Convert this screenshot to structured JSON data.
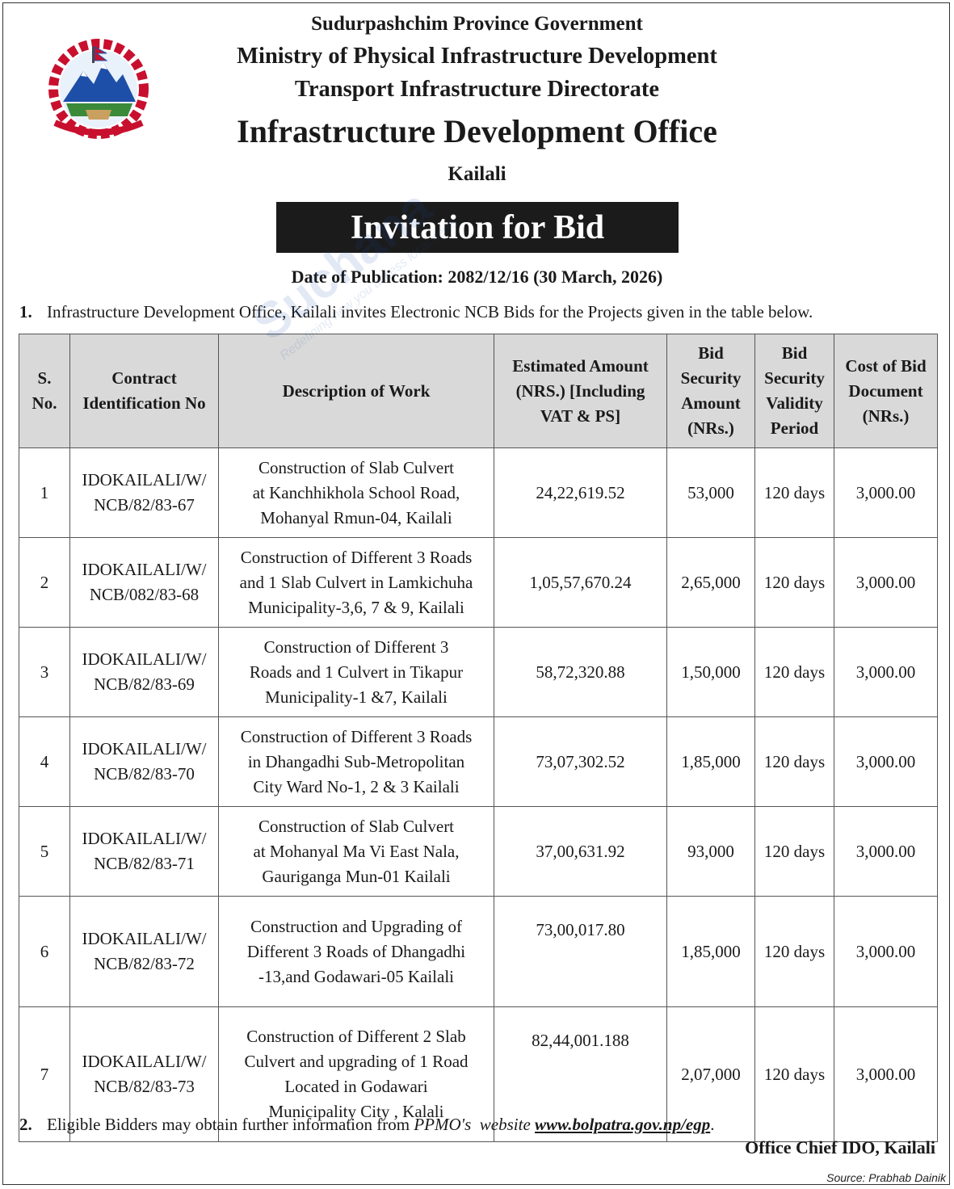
{
  "header": {
    "province": "Sudurpashchim Province Government",
    "ministry": "Ministry of Physical Infrastructure Development",
    "directorate": "Transport Infrastructure Directorate",
    "office": "Infrastructure Development Office",
    "district": "Kailali"
  },
  "title": "Invitation for Bid",
  "publication_date": "Date of Publication: 2082/12/16 (30 March, 2026)",
  "para1": {
    "num": "1.",
    "text": "Infrastructure Development Office, Kailali invites Electronic NCB Bids for the Projects given in the table below."
  },
  "table": {
    "headers": [
      [
        "S.",
        "No."
      ],
      [
        "Contract",
        "Identification No"
      ],
      [
        "Description of Work"
      ],
      [
        "Estimated Amount",
        "(NRS.) [Including",
        "VAT & PS]"
      ],
      [
        "Bid",
        "Security",
        "Amount",
        "(NRs.)"
      ],
      [
        "Bid",
        "Security",
        "Validity",
        "Period"
      ],
      [
        "Cost of Bid",
        "Document",
        "(NRs.)"
      ]
    ],
    "rows": [
      {
        "sn": "1",
        "id": [
          "IDOKAILALI/W/",
          "NCB/82/83-67"
        ],
        "desc": [
          "Construction of Slab Culvert",
          "at Kanchhikhola School Road,",
          "Mohanyal Rmun-04, Kailali"
        ],
        "amount": "24,22,619.52",
        "security": "53,000",
        "validity": "120 days",
        "cost": "3,000.00"
      },
      {
        "sn": "2",
        "id": [
          "IDOKAILALI/W/",
          "NCB/082/83-68"
        ],
        "desc": [
          "Construction of Different 3 Roads",
          "and 1 Slab Culvert in Lamkichuha",
          "Municipality-3,6, 7 & 9, Kailali"
        ],
        "amount": "1,05,57,670.24",
        "security": "2,65,000",
        "validity": "120 days",
        "cost": "3,000.00"
      },
      {
        "sn": "3",
        "id": [
          "IDOKAILALI/W/",
          "NCB/82/83-69"
        ],
        "desc": [
          "Construction of Different 3",
          "Roads and 1 Culvert in Tikapur",
          "Municipality-1 &7, Kailali"
        ],
        "amount": "58,72,320.88",
        "security": "1,50,000",
        "validity": "120 days",
        "cost": "3,000.00"
      },
      {
        "sn": "4",
        "id": [
          "IDOKAILALI/W/",
          "NCB/82/83-70"
        ],
        "desc": [
          "Construction of Different 3 Roads",
          "in Dhangadhi Sub-Metropolitan",
          "City Ward No-1, 2 & 3 Kailali"
        ],
        "amount": "73,07,302.52",
        "security": "1,85,000",
        "validity": "120 days",
        "cost": "3,000.00"
      },
      {
        "sn": "5",
        "id": [
          "IDOKAILALI/W/",
          "NCB/82/83-71"
        ],
        "desc": [
          "Construction of Slab Culvert",
          "at Mohanyal Ma Vi East Nala,",
          "Gauriganga Mun-01 Kailali"
        ],
        "amount": "37,00,631.92",
        "security": "93,000",
        "validity": "120 days",
        "cost": "3,000.00"
      },
      {
        "sn": "6",
        "id": [
          "IDOKAILALI/W/",
          "NCB/82/83-72"
        ],
        "desc": [
          "Construction and Upgrading of",
          "Different 3 Roads of Dhangadhi",
          "-13,and Godawari-05 Kailali"
        ],
        "amount": "73,00,017.80",
        "security": "1,85,000",
        "validity": "120 days",
        "cost": "3,000.00"
      },
      {
        "sn": "7",
        "id": [
          "IDOKAILALI/W/",
          "NCB/82/83-73"
        ],
        "desc": [
          "Construction  of Different 2 Slab",
          "Culvert and upgrading of 1 Road",
          "Located in Godawari",
          "Municipality City , Kalali"
        ],
        "amount": "82,44,001.188",
        "security": "2,07,000",
        "validity": "120 days",
        "cost": "3,000.00"
      }
    ]
  },
  "para2": {
    "num": "2.",
    "text": "Eligible Bidders may obtain further information from",
    "org": "PPMO's",
    "mid": "website",
    "url": "www.bolpatra.gov.np/egp",
    "end": "."
  },
  "signoff": "Office Chief IDO, Kailali",
  "source": "Source: Prabhab Dainik",
  "watermark": {
    "brand": "Suchana",
    "tagline": "Redefining how you access local news"
  },
  "colors": {
    "title_box": "#1b1b1b",
    "header_bg": "#d9d9d9",
    "emblem_red": "#c8102e",
    "emblem_blue": "#1e4fa8"
  }
}
